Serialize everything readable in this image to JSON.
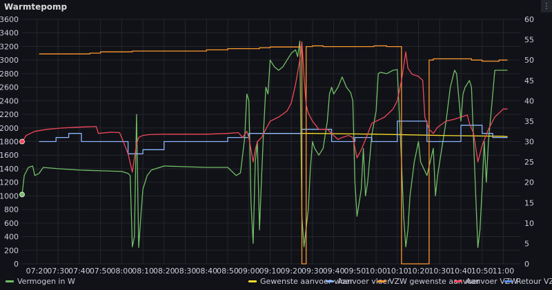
{
  "panel": {
    "title": "Warmtepomp",
    "menu_icon": "kebab-menu-icon"
  },
  "chart_data": {
    "type": "line",
    "x_axis": {
      "type": "time",
      "start": "07:13",
      "end": "11:08",
      "ticks": [
        "07:20",
        "07:30",
        "07:40",
        "07:50",
        "08:00",
        "08:10",
        "08:20",
        "08:30",
        "08:40",
        "08:50",
        "09:00",
        "09:10",
        "09:20",
        "09:30",
        "09:40",
        "09:50",
        "10:00",
        "10:10",
        "10:20",
        "10:30",
        "10:40",
        "10:50",
        "11:00"
      ]
    },
    "y_left": {
      "label": "",
      "min": 0,
      "max": 3600,
      "ticks": [
        0,
        200,
        400,
        600,
        800,
        1000,
        1200,
        1400,
        1600,
        1800,
        2000,
        2200,
        2400,
        2600,
        2800,
        3000,
        3200,
        3400,
        3600
      ]
    },
    "y_right": {
      "label": "",
      "min": 0,
      "max": 60,
      "ticks": [
        0,
        5,
        10,
        15,
        20,
        25,
        30,
        35,
        40,
        45,
        50,
        55,
        60
      ]
    },
    "grid": true,
    "legend_position": "bottom",
    "series": [
      {
        "name": "Vermogen in W",
        "axis": "left",
        "color": "#73bf69",
        "points": [
          [
            "07:13",
            1020
          ],
          [
            "07:14",
            1300
          ],
          [
            "07:16",
            1420
          ],
          [
            "07:18",
            1440
          ],
          [
            "07:19",
            1300
          ],
          [
            "07:21",
            1330
          ],
          [
            "07:23",
            1420
          ],
          [
            "07:30",
            1400
          ],
          [
            "07:40",
            1380
          ],
          [
            "07:50",
            1370
          ],
          [
            "08:00",
            1360
          ],
          [
            "08:03",
            1330
          ],
          [
            "08:04",
            1300
          ],
          [
            "08:05",
            250
          ],
          [
            "08:06",
            400
          ],
          [
            "08:07",
            2200
          ],
          [
            "08:08",
            240
          ],
          [
            "08:09",
            700
          ],
          [
            "08:10",
            1100
          ],
          [
            "08:12",
            1300
          ],
          [
            "08:14",
            1380
          ],
          [
            "08:20",
            1440
          ],
          [
            "08:40",
            1420
          ],
          [
            "08:50",
            1420
          ],
          [
            "08:54",
            1300
          ],
          [
            "08:56",
            1340
          ],
          [
            "08:58",
            1850
          ],
          [
            "08:59",
            2500
          ],
          [
            "09:00",
            2400
          ],
          [
            "09:01",
            900
          ],
          [
            "09:02",
            300
          ],
          [
            "09:03",
            1500
          ],
          [
            "09:04",
            1800
          ],
          [
            "09:05",
            500
          ],
          [
            "09:06",
            1300
          ],
          [
            "09:07",
            2000
          ],
          [
            "09:08",
            2600
          ],
          [
            "09:09",
            2500
          ],
          [
            "09:10",
            3000
          ],
          [
            "09:12",
            2900
          ],
          [
            "09:14",
            2850
          ],
          [
            "09:16",
            2900
          ],
          [
            "09:18",
            3000
          ],
          [
            "09:20",
            3100
          ],
          [
            "09:22",
            3150
          ],
          [
            "09:23",
            3050
          ],
          [
            "09:24",
            3280
          ],
          [
            "09:25",
            700
          ],
          [
            "09:26",
            250
          ],
          [
            "09:28",
            800
          ],
          [
            "09:29",
            1400
          ],
          [
            "09:30",
            1800
          ],
          [
            "09:31",
            1700
          ],
          [
            "09:33",
            1600
          ],
          [
            "09:35",
            1700
          ],
          [
            "09:37",
            2100
          ],
          [
            "09:38",
            2500
          ],
          [
            "09:39",
            2600
          ],
          [
            "09:40",
            2500
          ],
          [
            "09:42",
            2600
          ],
          [
            "09:44",
            2750
          ],
          [
            "09:46",
            2600
          ],
          [
            "09:48",
            2520
          ],
          [
            "09:49",
            2400
          ],
          [
            "09:50",
            1200
          ],
          [
            "09:51",
            700
          ],
          [
            "09:52",
            900
          ],
          [
            "09:53",
            1100
          ],
          [
            "09:54",
            1700
          ],
          [
            "09:55",
            1000
          ],
          [
            "09:56",
            1200
          ],
          [
            "09:58",
            1900
          ],
          [
            "10:00",
            2250
          ],
          [
            "10:01",
            2800
          ],
          [
            "10:02",
            2820
          ],
          [
            "10:05",
            2800
          ],
          [
            "10:08",
            2850
          ],
          [
            "10:10",
            2860
          ],
          [
            "10:12",
            1500
          ],
          [
            "10:13",
            700
          ],
          [
            "10:14",
            250
          ],
          [
            "10:15",
            500
          ],
          [
            "10:16",
            1000
          ],
          [
            "10:18",
            1500
          ],
          [
            "10:20",
            1800
          ],
          [
            "10:21",
            1500
          ],
          [
            "10:24",
            1300
          ],
          [
            "10:27",
            1700
          ],
          [
            "10:28",
            1000
          ],
          [
            "10:29",
            1300
          ],
          [
            "10:31",
            1700
          ],
          [
            "10:33",
            2100
          ],
          [
            "10:35",
            2600
          ],
          [
            "10:37",
            2850
          ],
          [
            "10:38",
            2800
          ],
          [
            "10:40",
            2100
          ],
          [
            "10:41",
            2500
          ],
          [
            "10:42",
            2600
          ],
          [
            "10:44",
            2700
          ],
          [
            "10:45",
            2600
          ],
          [
            "10:47",
            1000
          ],
          [
            "10:48",
            240
          ],
          [
            "10:49",
            500
          ],
          [
            "10:50",
            1100
          ],
          [
            "10:51",
            1800
          ],
          [
            "10:52",
            1200
          ],
          [
            "10:53",
            1800
          ],
          [
            "10:55",
            2500
          ],
          [
            "10:56",
            2850
          ],
          [
            "11:00",
            2850
          ],
          [
            "11:02",
            2850
          ]
        ]
      },
      {
        "name": "Gewenste aanvoer vloer",
        "axis": "right",
        "color": "#fade2a",
        "points": [
          [
            "09:05",
            32
          ],
          [
            "09:30",
            32
          ],
          [
            "10:00",
            31.8
          ],
          [
            "10:30",
            31.5
          ],
          [
            "11:00",
            31.3
          ],
          [
            "11:02",
            31.2
          ]
        ]
      },
      {
        "name": "Aanvoer vloer",
        "axis": "right",
        "color": "#8ab8ff",
        "points": [
          [
            "07:21",
            30
          ],
          [
            "07:29",
            30
          ],
          [
            "07:29",
            31
          ],
          [
            "07:35",
            31
          ],
          [
            "07:35",
            32
          ],
          [
            "07:41",
            32
          ],
          [
            "07:41",
            30
          ],
          [
            "08:03",
            30
          ],
          [
            "08:03",
            27
          ],
          [
            "08:10",
            27
          ],
          [
            "08:10",
            28
          ],
          [
            "08:20",
            28
          ],
          [
            "08:20",
            30
          ],
          [
            "08:50",
            30
          ],
          [
            "08:50",
            31
          ],
          [
            "09:00",
            31
          ],
          [
            "09:00",
            32
          ],
          [
            "09:25",
            32
          ],
          [
            "09:25",
            33
          ],
          [
            "09:39",
            33
          ],
          [
            "09:39",
            30
          ],
          [
            "09:50",
            30
          ],
          [
            "09:50",
            31
          ],
          [
            "09:58",
            31
          ],
          [
            "09:58",
            30
          ],
          [
            "10:10",
            30
          ],
          [
            "10:10",
            35
          ],
          [
            "10:24",
            35
          ],
          [
            "10:24",
            30
          ],
          [
            "10:40",
            30
          ],
          [
            "10:40",
            34
          ],
          [
            "10:50",
            34
          ],
          [
            "10:50",
            32
          ],
          [
            "10:55",
            32
          ],
          [
            "10:55",
            31
          ],
          [
            "11:02",
            31
          ]
        ]
      },
      {
        "name": "VZW gewenste aanvoer",
        "axis": "right",
        "color": "#ff9830",
        "points": [
          [
            "07:21",
            51.5
          ],
          [
            "07:45",
            51.5
          ],
          [
            "07:45",
            51.7
          ],
          [
            "07:50",
            51.7
          ],
          [
            "07:50",
            52
          ],
          [
            "08:05",
            52
          ],
          [
            "08:05",
            52.2
          ],
          [
            "08:40",
            52.2
          ],
          [
            "08:40",
            52.5
          ],
          [
            "08:50",
            52.5
          ],
          [
            "08:50",
            52.8
          ],
          [
            "09:05",
            52.8
          ],
          [
            "09:05",
            53
          ],
          [
            "09:10",
            53
          ],
          [
            "09:10",
            53.2
          ],
          [
            "09:25",
            53.2
          ],
          [
            "09:25",
            0
          ],
          [
            "09:27",
            0
          ],
          [
            "09:27",
            53.3
          ],
          [
            "09:30",
            53.3
          ],
          [
            "09:30",
            53.5
          ],
          [
            "09:35",
            53.5
          ],
          [
            "09:35",
            53.3
          ],
          [
            "09:59",
            53.3
          ],
          [
            "09:59",
            53.5
          ],
          [
            "10:05",
            53.5
          ],
          [
            "10:05",
            53.3
          ],
          [
            "10:12",
            53.3
          ],
          [
            "10:12",
            0
          ],
          [
            "10:25",
            0
          ],
          [
            "10:25",
            50
          ],
          [
            "10:27",
            50
          ],
          [
            "10:27",
            50.3
          ],
          [
            "10:45",
            50.3
          ],
          [
            "10:45",
            50
          ],
          [
            "10:50",
            50
          ],
          [
            "10:50",
            49.7
          ],
          [
            "10:58",
            49.7
          ],
          [
            "10:58",
            50
          ],
          [
            "11:02",
            50
          ]
        ]
      },
      {
        "name": "Aanvoer VZW",
        "axis": "right",
        "color": "#f2495c",
        "points": [
          [
            "07:13",
            30
          ],
          [
            "07:15",
            31.5
          ],
          [
            "07:19",
            32.5
          ],
          [
            "07:25",
            33
          ],
          [
            "07:31",
            33.3
          ],
          [
            "07:38",
            33.5
          ],
          [
            "07:48",
            33.7
          ],
          [
            "07:49",
            32
          ],
          [
            "07:55",
            32.3
          ],
          [
            "07:59",
            32.2
          ],
          [
            "08:00",
            31
          ],
          [
            "08:03",
            27
          ],
          [
            "08:05",
            22.5
          ],
          [
            "08:07",
            29.5
          ],
          [
            "08:08",
            31
          ],
          [
            "08:10",
            31.5
          ],
          [
            "08:13",
            31.7
          ],
          [
            "08:20",
            31.8
          ],
          [
            "08:30",
            31.8
          ],
          [
            "08:40",
            31.8
          ],
          [
            "08:50",
            32
          ],
          [
            "08:55",
            32.2
          ],
          [
            "08:57",
            31
          ],
          [
            "08:59",
            32.5
          ],
          [
            "09:00",
            31
          ],
          [
            "09:02",
            25
          ],
          [
            "09:03",
            28
          ],
          [
            "09:04",
            30
          ],
          [
            "09:06",
            31
          ],
          [
            "09:08",
            33
          ],
          [
            "09:10",
            35
          ],
          [
            "09:14",
            36
          ],
          [
            "09:18",
            37.5
          ],
          [
            "09:20",
            39.5
          ],
          [
            "09:22",
            44
          ],
          [
            "09:24",
            50
          ],
          [
            "09:25",
            54.5
          ],
          [
            "09:26",
            46
          ],
          [
            "09:27",
            39
          ],
          [
            "09:28",
            37
          ],
          [
            "09:30",
            35
          ],
          [
            "09:33",
            33
          ],
          [
            "09:37",
            33
          ],
          [
            "09:39",
            32
          ],
          [
            "09:42",
            30.5
          ],
          [
            "09:44",
            31
          ],
          [
            "09:47",
            31.5
          ],
          [
            "09:49",
            31
          ],
          [
            "09:51",
            26
          ],
          [
            "09:53",
            28
          ],
          [
            "09:55",
            30.5
          ],
          [
            "09:58",
            34.5
          ],
          [
            "10:00",
            35
          ],
          [
            "10:04",
            36
          ],
          [
            "10:08",
            38
          ],
          [
            "10:10",
            40
          ],
          [
            "10:12",
            45
          ],
          [
            "10:14",
            52
          ],
          [
            "10:15",
            48
          ],
          [
            "10:17",
            46.5
          ],
          [
            "10:20",
            46
          ],
          [
            "10:22",
            45
          ],
          [
            "10:23",
            36
          ],
          [
            "10:25",
            33
          ],
          [
            "10:27",
            32
          ],
          [
            "10:29",
            33.5
          ],
          [
            "10:33",
            35
          ],
          [
            "10:37",
            35.5
          ],
          [
            "10:40",
            36
          ],
          [
            "10:43",
            36.5
          ],
          [
            "10:44",
            34.5
          ],
          [
            "10:46",
            32
          ],
          [
            "10:48",
            25
          ],
          [
            "10:50",
            29
          ],
          [
            "10:53",
            33
          ],
          [
            "10:56",
            36
          ],
          [
            "11:00",
            38
          ],
          [
            "11:02",
            38
          ]
        ]
      },
      {
        "name": "Retour VZW",
        "axis": "right",
        "color": "#5794f2",
        "points": []
      }
    ]
  }
}
